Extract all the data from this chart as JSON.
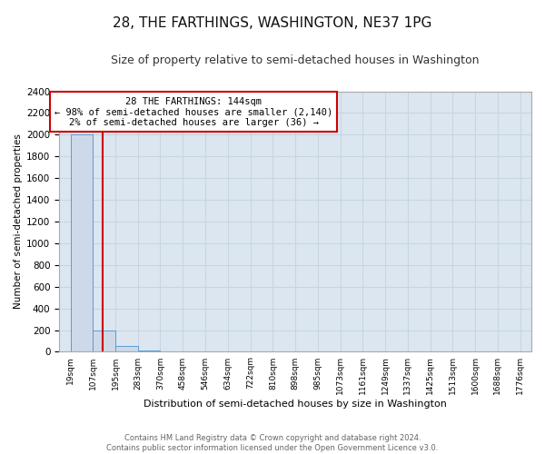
{
  "title": "28, THE FARTHINGS, WASHINGTON, NE37 1PG",
  "subtitle": "Size of property relative to semi-detached houses in Washington",
  "xlabel": "Distribution of semi-detached houses by size in Washington",
  "ylabel": "Number of semi-detached properties",
  "footer_line1": "Contains HM Land Registry data © Crown copyright and database right 2024.",
  "footer_line2": "Contains public sector information licensed under the Open Government Licence v3.0.",
  "property_size": 144,
  "annotation_line1": "28 THE FARTHINGS: 144sqm",
  "annotation_line2": "← 98% of semi-detached houses are smaller (2,140)",
  "annotation_line3": "2% of semi-detached houses are larger (36) →",
  "bar_edges": [
    19,
    107,
    195,
    283,
    370,
    458,
    546,
    634,
    722,
    810,
    898,
    985,
    1073,
    1161,
    1249,
    1337,
    1425,
    1513,
    1600,
    1688,
    1776
  ],
  "bar_heights": [
    2000,
    200,
    50,
    15,
    8,
    5,
    4,
    3,
    2,
    2,
    1,
    1,
    1,
    0,
    0,
    0,
    0,
    0,
    0,
    0
  ],
  "bar_color": "#cdd9e8",
  "bar_edge_color": "#5b9bd5",
  "vline_color": "#cc0000",
  "vline_x": 144,
  "annotation_box_edgecolor": "#cc0000",
  "ylim": [
    0,
    2400
  ],
  "yticks": [
    0,
    200,
    400,
    600,
    800,
    1000,
    1200,
    1400,
    1600,
    1800,
    2000,
    2200,
    2400
  ],
  "grid_color": "#c8d4e0",
  "bg_color": "#dce6f1",
  "title_fontsize": 11,
  "subtitle_fontsize": 9,
  "tick_labels": [
    "19sqm",
    "107sqm",
    "195sqm",
    "283sqm",
    "370sqm",
    "458sqm",
    "546sqm",
    "634sqm",
    "722sqm",
    "810sqm",
    "898sqm",
    "985sqm",
    "1073sqm",
    "1161sqm",
    "1249sqm",
    "1337sqm",
    "1425sqm",
    "1513sqm",
    "1600sqm",
    "1688sqm",
    "1776sqm"
  ]
}
